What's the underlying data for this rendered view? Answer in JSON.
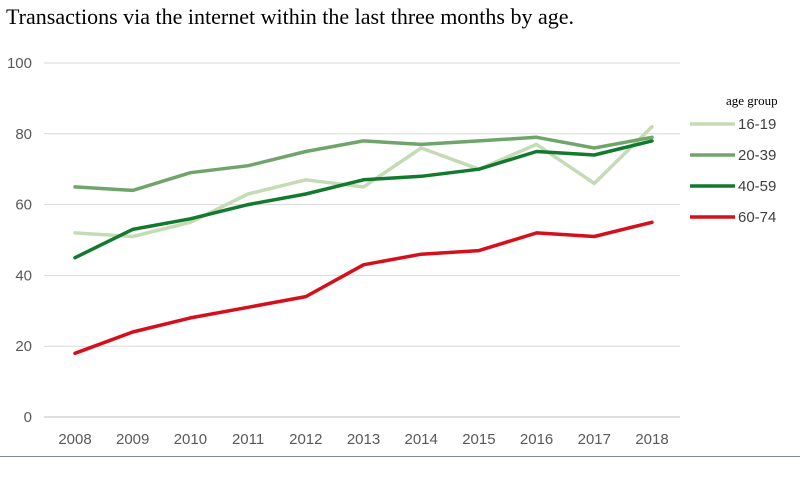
{
  "title": "Transactions via the internet within the last three months by age.",
  "chart_data": {
    "type": "line",
    "title": "Transactions via the internet within the last three months by age.",
    "xlabel": "",
    "ylabel": "",
    "categories": [
      "2008",
      "2009",
      "2010",
      "2011",
      "2012",
      "2013",
      "2014",
      "2015",
      "2016",
      "2017",
      "2018"
    ],
    "ylim": [
      0,
      100
    ],
    "yticks": [
      "0",
      "20",
      "40",
      "60",
      "80",
      "100"
    ],
    "grid": true,
    "legend_title": "age group",
    "legend_position": "right",
    "series": [
      {
        "name": "16-19",
        "color": "#c5dbb5",
        "values": [
          52,
          51,
          55,
          63,
          67,
          65,
          76,
          70,
          77,
          66,
          82
        ]
      },
      {
        "name": "20-39",
        "color": "#6fa56b",
        "values": [
          65,
          64,
          69,
          71,
          75,
          78,
          77,
          78,
          79,
          76,
          79
        ]
      },
      {
        "name": "40-59",
        "color": "#127a2e",
        "values": [
          45,
          53,
          56,
          60,
          63,
          67,
          68,
          70,
          75,
          74,
          78
        ]
      },
      {
        "name": "60-74",
        "color": "#d3101b",
        "values": [
          18,
          24,
          28,
          31,
          34,
          43,
          46,
          47,
          52,
          51,
          55
        ]
      }
    ]
  }
}
